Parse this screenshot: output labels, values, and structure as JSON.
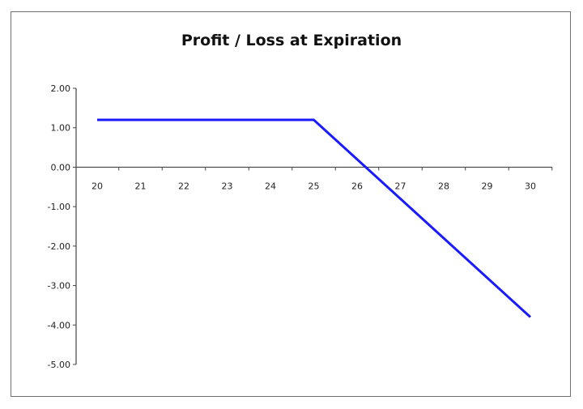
{
  "chart_data": {
    "type": "line",
    "title": "Profit / Loss at Expiration",
    "xlabel": "",
    "ylabel": "",
    "x_ticks": [
      "20",
      "21",
      "22",
      "23",
      "24",
      "25",
      "26",
      "27",
      "28",
      "29",
      "30"
    ],
    "y_ticks": [
      "2.00",
      "1.00",
      "0.00",
      "-1.00",
      "-2.00",
      "-3.00",
      "-4.00",
      "-5.00"
    ],
    "xlim": [
      20,
      30
    ],
    "ylim": [
      -5,
      2
    ],
    "grid": false,
    "legend": "none",
    "series": [
      {
        "color": "#1a1aff",
        "x": [
          20,
          25,
          30
        ],
        "y": [
          1.2,
          1.2,
          -3.8
        ]
      }
    ]
  }
}
